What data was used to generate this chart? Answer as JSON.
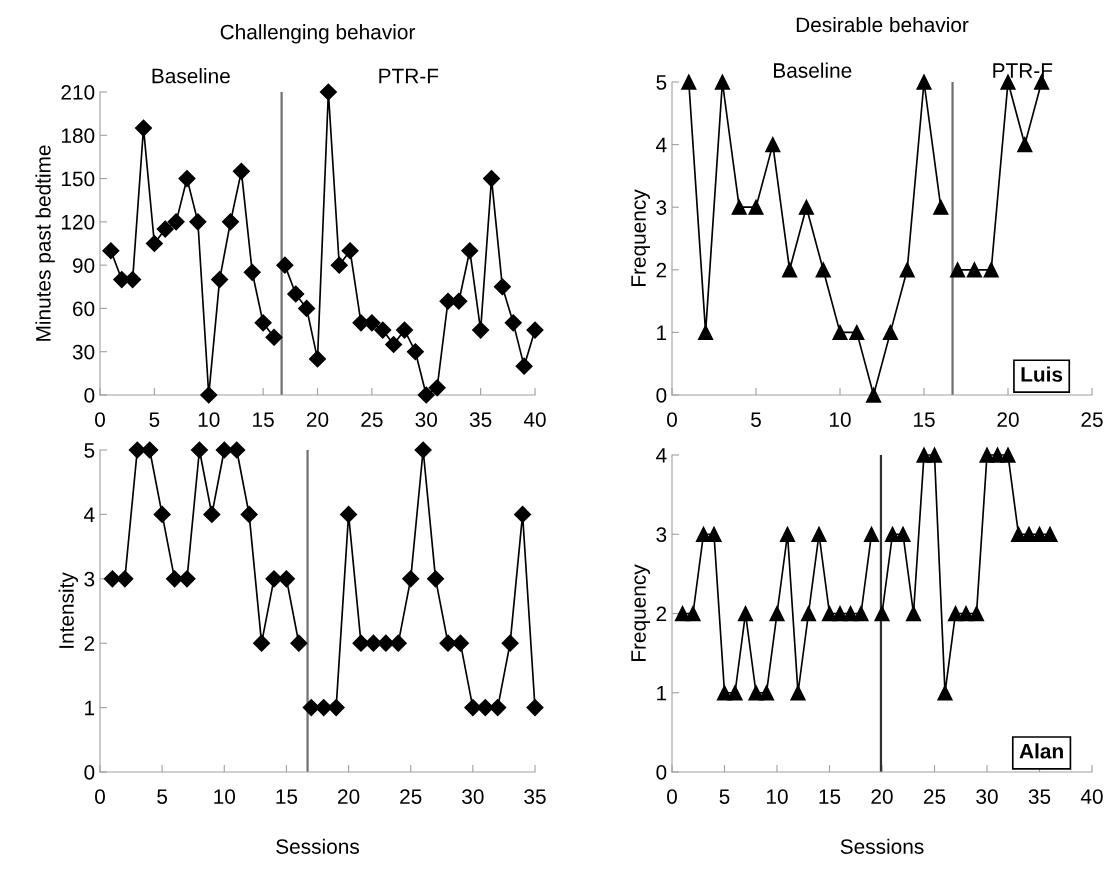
{
  "chart_data": [
    {
      "type": "line",
      "title": "Challenging behavior",
      "ylabel": "Minutes past bedtime",
      "xlim": [
        0,
        40
      ],
      "xticks": [
        0,
        5,
        10,
        15,
        20,
        25,
        30,
        35,
        40
      ],
      "ylim": [
        0,
        210
      ],
      "yticks": [
        0,
        30,
        60,
        90,
        120,
        150,
        180,
        210
      ],
      "marker": "diamond",
      "grid": false,
      "annotations": [
        "Baseline",
        "PTR-F"
      ],
      "ref_lines": [
        {
          "axis": "x",
          "value": 16.7,
          "color": "#707070"
        }
      ],
      "series": [
        {
          "color": "#000000",
          "x": [
            1,
            2,
            3,
            4,
            5,
            6,
            7,
            8,
            9,
            10,
            11,
            12,
            13,
            14,
            15,
            16
          ],
          "values": [
            100,
            80,
            80,
            185,
            105,
            115,
            120,
            150,
            120,
            0,
            80,
            120,
            155,
            85,
            50,
            40
          ]
        },
        {
          "color": "#000000",
          "x": [
            17,
            18,
            19,
            20,
            21,
            22,
            23,
            24,
            25,
            26,
            27,
            28,
            29,
            30,
            31,
            32,
            33,
            34,
            35,
            36,
            37,
            38,
            39,
            40
          ],
          "values": [
            90,
            70,
            60,
            25,
            210,
            90,
            100,
            50,
            50,
            45,
            35,
            45,
            30,
            0,
            5,
            65,
            65,
            100,
            45,
            150,
            75,
            50,
            20,
            45
          ]
        }
      ]
    },
    {
      "type": "line",
      "title": "Desirable behavior",
      "ylabel": "Frequency",
      "xlim": [
        0,
        25
      ],
      "xticks": [
        0,
        5,
        10,
        15,
        20,
        25
      ],
      "ylim": [
        0,
        5
      ],
      "yticks": [
        0,
        1,
        2,
        3,
        4,
        5
      ],
      "marker": "triangle",
      "grid": false,
      "annotations": [
        "Baseline",
        "PTR-F",
        "Luis"
      ],
      "ref_lines": [
        {
          "axis": "x",
          "value": 16.7,
          "color": "#707070"
        }
      ],
      "series": [
        {
          "color": "#000000",
          "x": [
            1,
            2,
            3,
            4,
            5,
            6,
            7,
            8,
            9,
            10,
            11,
            12,
            13,
            14,
            15,
            16
          ],
          "values": [
            5,
            1,
            5,
            3,
            3,
            4,
            2,
            3,
            2,
            1,
            1,
            0,
            1,
            2,
            5,
            3
          ]
        },
        {
          "color": "#000000",
          "x": [
            17,
            18,
            19,
            20,
            21,
            22
          ],
          "values": [
            2,
            2,
            2,
            5,
            4,
            5
          ]
        }
      ]
    },
    {
      "type": "line",
      "ylabel": "Intensity",
      "xlabel": "Sessions",
      "xlim": [
        0,
        35
      ],
      "xticks": [
        0,
        5,
        10,
        15,
        20,
        25,
        30,
        35
      ],
      "ylim": [
        0,
        5
      ],
      "yticks": [
        0,
        1,
        2,
        3,
        4,
        5
      ],
      "marker": "diamond",
      "grid": false,
      "ref_lines": [
        {
          "axis": "x",
          "value": 16.7,
          "color": "#707070"
        }
      ],
      "series": [
        {
          "color": "#000000",
          "x": [
            1,
            2,
            3,
            4,
            5,
            6,
            7,
            8,
            9,
            10,
            11,
            12,
            13,
            14,
            15,
            16
          ],
          "values": [
            3,
            3,
            5,
            5,
            4,
            3,
            3,
            5,
            4,
            5,
            5,
            4,
            2,
            3,
            3,
            2
          ]
        },
        {
          "color": "#000000",
          "x": [
            17,
            18,
            19,
            20,
            21,
            22,
            23,
            24,
            25,
            26,
            27,
            28,
            29,
            30,
            31,
            32,
            33,
            34,
            35
          ],
          "values": [
            1,
            1,
            1,
            4,
            2,
            2,
            2,
            2,
            3,
            5,
            3,
            2,
            2,
            1,
            1,
            1,
            2,
            4,
            1
          ]
        }
      ]
    },
    {
      "type": "line",
      "ylabel": "Frequency",
      "xlabel": "Sessions",
      "xlim": [
        0,
        40
      ],
      "xticks": [
        0,
        5,
        10,
        15,
        20,
        25,
        30,
        35,
        40
      ],
      "ylim": [
        0,
        4
      ],
      "yticks": [
        0,
        1,
        2,
        3,
        4
      ],
      "marker": "triangle",
      "grid": false,
      "annotations": [
        "Alan"
      ],
      "ref_lines": [
        {
          "axis": "x",
          "value": 19.9,
          "color": "#303030"
        }
      ],
      "series": [
        {
          "color": "#000000",
          "x": [
            1,
            2,
            3,
            4,
            5,
            6,
            7,
            8,
            9,
            10,
            11,
            12,
            13,
            14,
            15,
            16,
            17,
            18,
            19
          ],
          "values": [
            2,
            2,
            3,
            3,
            1,
            1,
            2,
            1,
            1,
            2,
            3,
            1,
            2,
            3,
            2,
            2,
            2,
            2,
            3
          ]
        },
        {
          "color": "#000000",
          "x": [
            20,
            21,
            22,
            23,
            24,
            25,
            26,
            27,
            28,
            29,
            30,
            31,
            32,
            33,
            34,
            35,
            36
          ],
          "values": [
            2,
            3,
            3,
            2,
            4,
            4,
            1,
            2,
            2,
            2,
            4,
            4,
            4,
            3,
            3,
            3,
            3
          ]
        }
      ]
    }
  ]
}
